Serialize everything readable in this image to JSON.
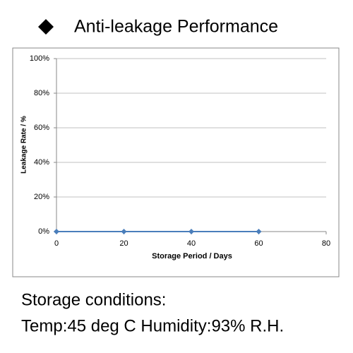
{
  "header": {
    "title": "Anti-leakage Performance"
  },
  "chart_data": {
    "type": "line",
    "x": [
      0,
      20,
      40,
      60
    ],
    "series": [
      {
        "name": "Leakage Rate",
        "color": "#4a7ebb",
        "values": [
          0,
          0,
          0,
          0
        ]
      }
    ],
    "xlabel": "Storage Period / Days",
    "ylabel": "Leakage Rate / %",
    "xlim": [
      0,
      80
    ],
    "xticks": [
      0,
      20,
      40,
      60,
      80
    ],
    "ylim": [
      0,
      100
    ],
    "yticks": [
      {
        "value": 0,
        "label": "0%"
      },
      {
        "value": 20,
        "label": "20%"
      },
      {
        "value": 40,
        "label": "40%"
      },
      {
        "value": 60,
        "label": "60%"
      },
      {
        "value": 80,
        "label": "80%"
      },
      {
        "value": 100,
        "label": "100%"
      }
    ],
    "grid": true
  },
  "footer": {
    "lines": [
      "Storage conditions:",
      "Temp:45 deg C   Humidity:93% R.H."
    ]
  }
}
